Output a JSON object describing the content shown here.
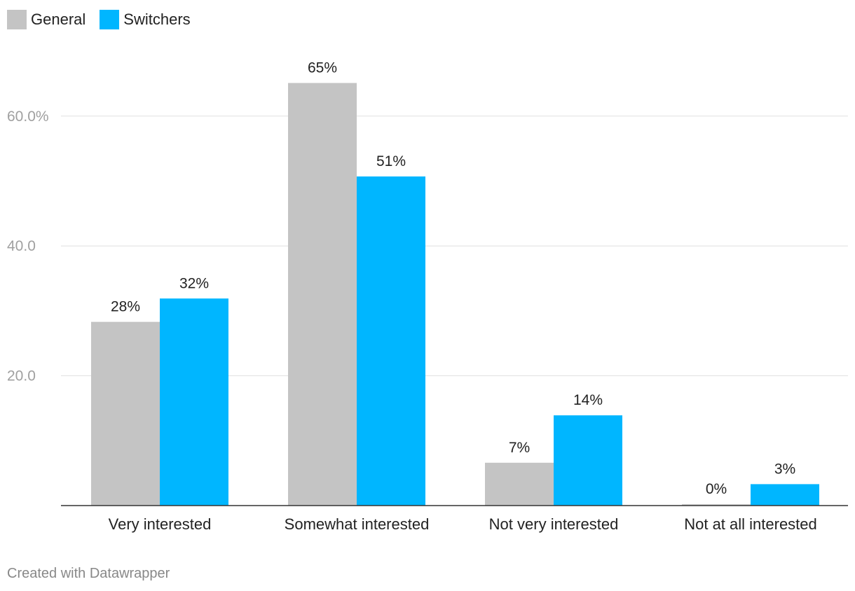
{
  "chart_data": {
    "type": "bar",
    "categories": [
      "Very interested",
      "Somewhat interested",
      "Not very interested",
      "Not at all interested"
    ],
    "series": [
      {
        "name": "General",
        "color": "#c4c4c4",
        "values": [
          28.3,
          65.1,
          6.6,
          0.2
        ],
        "labels": [
          "28%",
          "65%",
          "7%",
          "0%"
        ]
      },
      {
        "name": "Switchers",
        "color": "#00b6ff",
        "values": [
          31.9,
          50.7,
          13.9,
          3.3
        ],
        "labels": [
          "32%",
          "51%",
          "14%",
          "3%"
        ]
      }
    ],
    "y_ticks": [
      20,
      40,
      60
    ],
    "y_tick_labels": [
      "20.0",
      "40.0",
      "60.0%"
    ],
    "ylim": [
      0,
      70
    ],
    "title": "",
    "xlabel": "",
    "ylabel": "",
    "grid": true,
    "legend_position": "top-left"
  },
  "footer": {
    "credit": "Created with Datawrapper"
  }
}
